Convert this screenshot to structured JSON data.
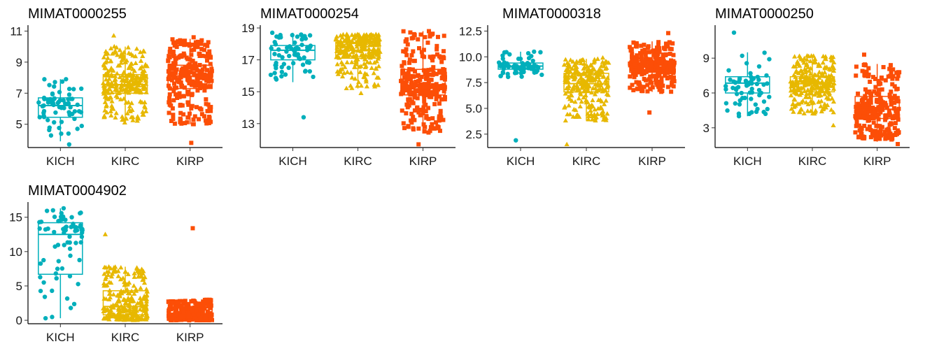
{
  "colors": {
    "KICH": "#00AFBB",
    "KIRC": "#E7B800",
    "KIRP": "#FC4E07"
  },
  "shapes": {
    "KICH": "circle",
    "KIRC": "triangle",
    "KIRP": "square"
  },
  "chart_data": [
    {
      "type": "box-jitter",
      "title": "MIMAT0000255",
      "categories": [
        "KICH",
        "KIRC",
        "KIRP"
      ],
      "ylim": [
        3.5,
        11.2
      ],
      "yticks": [
        5,
        7,
        9,
        11
      ],
      "grid": false,
      "legend": "none",
      "series": [
        {
          "name": "KICH",
          "n": 66,
          "q1": 5.45,
          "median": 6.2,
          "q3": 6.7,
          "whisker_low": 3.9,
          "whisker_high": 7.9,
          "min": 3.7,
          "max": 7.9
        },
        {
          "name": "KIRC",
          "n": 260,
          "q1": 7.0,
          "median": 7.55,
          "q3": 8.2,
          "whisker_low": 5.2,
          "whisker_high": 10.0,
          "min": 5.1,
          "max": 10.7
        },
        {
          "name": "KIRP",
          "n": 280,
          "q1": 7.3,
          "median": 8.1,
          "q3": 8.8,
          "whisker_low": 5.0,
          "whisker_high": 10.5,
          "min": 3.8,
          "max": 10.6
        }
      ]
    },
    {
      "type": "box-jitter",
      "title": "MIMAT0000254",
      "categories": [
        "KICH",
        "KIRC",
        "KIRP"
      ],
      "ylim": [
        11.5,
        19.0
      ],
      "yticks": [
        13,
        15,
        17,
        19
      ],
      "grid": false,
      "legend": "none",
      "series": [
        {
          "name": "KICH",
          "n": 66,
          "q1": 17.0,
          "median": 17.6,
          "q3": 17.9,
          "whisker_low": 15.6,
          "whisker_high": 18.7,
          "min": 13.4,
          "max": 18.7
        },
        {
          "name": "KIRC",
          "n": 260,
          "q1": 17.1,
          "median": 17.6,
          "q3": 18.1,
          "whisker_low": 15.2,
          "whisker_high": 18.6,
          "min": 14.9,
          "max": 18.6
        },
        {
          "name": "KIRP",
          "n": 280,
          "q1": 14.8,
          "median": 15.4,
          "q3": 16.4,
          "whisker_low": 12.4,
          "whisker_high": 18.8,
          "min": 11.7,
          "max": 18.8
        }
      ]
    },
    {
      "type": "box-jitter",
      "title": "MIMAT0000318",
      "categories": [
        "KICH",
        "KIRC",
        "KIRP"
      ],
      "ylim": [
        1.2,
        12.8
      ],
      "yticks": [
        2.5,
        5.0,
        7.5,
        10.0,
        12.5
      ],
      "ytick_labels": [
        "2.5",
        "5.0",
        "7.5",
        "10.0",
        "12.5"
      ],
      "grid": false,
      "legend": "none",
      "series": [
        {
          "name": "KICH",
          "n": 66,
          "q1": 8.8,
          "median": 9.1,
          "q3": 9.4,
          "whisker_low": 8.0,
          "whisker_high": 10.5,
          "min": 1.9,
          "max": 10.5
        },
        {
          "name": "KIRC",
          "n": 260,
          "q1": 6.6,
          "median": 7.4,
          "q3": 8.4,
          "whisker_low": 3.8,
          "whisker_high": 9.8,
          "min": 1.5,
          "max": 9.9
        },
        {
          "name": "KIRP",
          "n": 280,
          "q1": 8.5,
          "median": 9.0,
          "q3": 9.6,
          "whisker_low": 6.6,
          "whisker_high": 11.5,
          "min": 4.6,
          "max": 12.3
        }
      ]
    },
    {
      "type": "box-jitter",
      "title": "MIMAT0000250",
      "categories": [
        "KICH",
        "KIRC",
        "KIRP"
      ],
      "ylim": [
        1.3,
        11.6
      ],
      "yticks": [
        3,
        6,
        9
      ],
      "grid": false,
      "legend": "none",
      "series": [
        {
          "name": "KICH",
          "n": 66,
          "q1": 6.0,
          "median": 6.85,
          "q3": 7.4,
          "whisker_low": 4.0,
          "whisker_high": 9.5,
          "min": 4.0,
          "max": 11.2
        },
        {
          "name": "KIRC",
          "n": 260,
          "q1": 6.1,
          "median": 6.8,
          "q3": 7.4,
          "whisker_low": 4.2,
          "whisker_high": 9.2,
          "min": 3.2,
          "max": 9.2
        },
        {
          "name": "KIRP",
          "n": 280,
          "q1": 3.8,
          "median": 4.6,
          "q3": 5.7,
          "whisker_low": 1.8,
          "whisker_high": 8.5,
          "min": 1.6,
          "max": 9.3
        }
      ]
    },
    {
      "type": "box-jitter",
      "title": "MIMAT0004902",
      "categories": [
        "KICH",
        "KIRC",
        "KIRP"
      ],
      "ylim": [
        -0.5,
        16.8
      ],
      "yticks": [
        0,
        5,
        10,
        15
      ],
      "grid": false,
      "legend": "none",
      "series": [
        {
          "name": "KICH",
          "n": 66,
          "q1": 6.7,
          "median": 12.5,
          "q3": 14.2,
          "whisker_low": 0.3,
          "whisker_high": 16.3,
          "min": 0.3,
          "max": 16.3
        },
        {
          "name": "KIRC",
          "n": 260,
          "q1": 0.8,
          "median": 2.0,
          "q3": 4.3,
          "whisker_low": 0.0,
          "whisker_high": 7.8,
          "min": 0.0,
          "max": 12.5
        },
        {
          "name": "KIRP",
          "n": 280,
          "q1": 0.4,
          "median": 0.9,
          "q3": 1.8,
          "whisker_low": 0.0,
          "whisker_high": 3.0,
          "min": 0.0,
          "max": 13.4
        }
      ]
    }
  ]
}
